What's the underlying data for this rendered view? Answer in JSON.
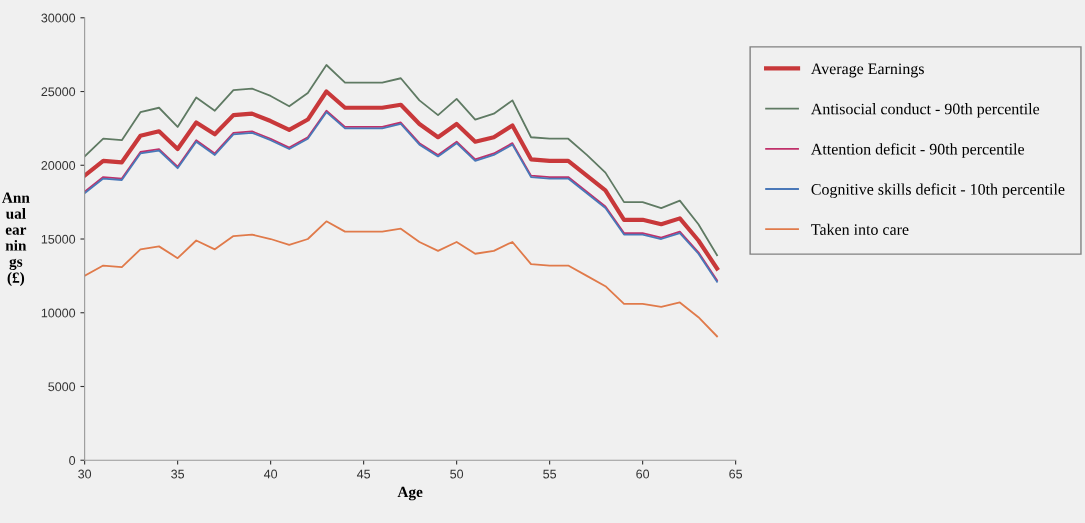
{
  "chart_data": {
    "type": "line",
    "xlabel": "Age",
    "ylabel": "Annual earnings (£)",
    "x": [
      30,
      31,
      32,
      33,
      34,
      35,
      36,
      37,
      38,
      39,
      40,
      41,
      42,
      43,
      44,
      45,
      46,
      47,
      48,
      49,
      50,
      51,
      52,
      53,
      54,
      55,
      56,
      57,
      58,
      59,
      60,
      61,
      62,
      63,
      64
    ],
    "series": [
      {
        "name": "Average Earnings",
        "color": "#c8383a",
        "values": [
          19300,
          20300,
          20200,
          22000,
          22300,
          21100,
          22900,
          22100,
          23400,
          23500,
          23000,
          22400,
          23100,
          25000,
          23900,
          23900,
          23900,
          24100,
          22800,
          21900,
          22800,
          21600,
          21900,
          22700,
          20400,
          20300,
          20300,
          19300,
          18300,
          16300,
          16300,
          16000,
          16400,
          14900,
          13000
        ]
      },
      {
        "name": "Antisocial conduct - 90th percentile",
        "color": "#5f7a63",
        "values": [
          20600,
          21800,
          21700,
          23600,
          23900,
          22600,
          24600,
          23700,
          25100,
          25200,
          24700,
          24000,
          24900,
          26800,
          25600,
          25600,
          25600,
          25900,
          24400,
          23400,
          24500,
          23100,
          23500,
          24400,
          21900,
          21800,
          21800,
          20700,
          19500,
          17500,
          17500,
          17100,
          17600,
          16000,
          13900
        ]
      },
      {
        "name": "Attention deficit - 90th percentile",
        "color": "#c0306a",
        "values": [
          18200,
          19200,
          19100,
          20900,
          21100,
          19900,
          21700,
          20800,
          22200,
          22300,
          21800,
          21200,
          21900,
          23700,
          22600,
          22600,
          22600,
          22900,
          21500,
          20700,
          21600,
          20400,
          20800,
          21500,
          19300,
          19200,
          19200,
          18200,
          17200,
          15400,
          15400,
          15100,
          15500,
          14100,
          12200
        ]
      },
      {
        "name": "Cognitive skills deficit - 10th percentile",
        "color": "#4a78b8",
        "values": [
          18100,
          19100,
          19000,
          20800,
          21000,
          19800,
          21600,
          20700,
          22100,
          22200,
          21700,
          21100,
          21800,
          23600,
          22500,
          22500,
          22500,
          22800,
          21400,
          20600,
          21500,
          20300,
          20700,
          21400,
          19200,
          19100,
          19100,
          18100,
          17100,
          15300,
          15300,
          15000,
          15400,
          14000,
          12100
        ]
      },
      {
        "name": "Taken into care",
        "color": "#e07a4a",
        "values": [
          12500,
          13200,
          13100,
          14300,
          14500,
          13700,
          14900,
          14300,
          15200,
          15300,
          15000,
          14600,
          15000,
          16200,
          15500,
          15500,
          15500,
          15700,
          14800,
          14200,
          14800,
          14000,
          14200,
          14800,
          13300,
          13200,
          13200,
          12500,
          11800,
          10600,
          10600,
          10400,
          10700,
          9700,
          8400
        ]
      }
    ],
    "xlim": [
      30,
      65
    ],
    "xticks": [
      30,
      35,
      40,
      45,
      50,
      55,
      60,
      65
    ],
    "ylim": [
      0,
      30000
    ],
    "yticks": [
      0,
      5000,
      10000,
      15000,
      20000,
      25000,
      30000
    ],
    "grid": false,
    "legend": "right",
    "marker": "none",
    "line_style": "solid"
  }
}
